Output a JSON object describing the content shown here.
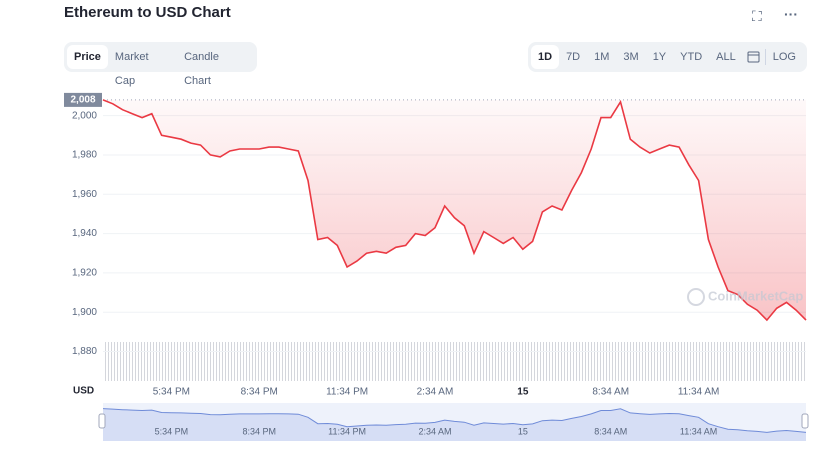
{
  "header": {
    "title": "Ethereum to USD Chart"
  },
  "tabs": [
    "Price",
    "Market Cap",
    "Candle Chart"
  ],
  "ranges": [
    "1D",
    "7D",
    "1M",
    "3M",
    "1Y",
    "YTD",
    "ALL"
  ],
  "log_label": "LOG",
  "chart_data": {
    "type": "line",
    "currency_label": "USD",
    "watermark": "CoinMarketCap",
    "start_price": {
      "value": 2008,
      "label": "2,008"
    },
    "categories": [
      null,
      null,
      null,
      null,
      null,
      null,
      null,
      "5:34 PM",
      null,
      null,
      null,
      null,
      null,
      null,
      null,
      null,
      "8:34 PM",
      null,
      null,
      null,
      null,
      null,
      null,
      null,
      null,
      "11:34 PM",
      null,
      null,
      null,
      null,
      null,
      null,
      null,
      null,
      "2:34 AM",
      null,
      null,
      null,
      null,
      null,
      null,
      null,
      null,
      "15",
      null,
      null,
      null,
      null,
      null,
      null,
      null,
      null,
      "8:34 AM",
      null,
      null,
      null,
      null,
      null,
      null,
      null,
      null,
      "11:34 AM",
      null,
      null,
      null,
      null,
      null,
      null,
      null,
      null,
      null,
      null,
      null
    ],
    "values": [
      2008,
      2006,
      2003,
      2001,
      1999,
      2001,
      1990,
      1989,
      1988,
      1986,
      1985,
      1980,
      1979,
      1982,
      1983,
      1983,
      1983,
      1984,
      1984,
      1983,
      1982,
      1967,
      1937,
      1938,
      1934,
      1923,
      1926,
      1930,
      1931,
      1930,
      1933,
      1934,
      1940,
      1939,
      1943,
      1954,
      1948,
      1944,
      1930,
      1941,
      1938,
      1935,
      1938,
      1932,
      1936,
      1951,
      1954,
      1952,
      1962,
      1971,
      1983,
      1999,
      1999,
      2007,
      1988,
      1984,
      1981,
      1983,
      1985,
      1984,
      1975,
      1967,
      1937,
      1923,
      1911,
      1909,
      1904,
      1901,
      1896,
      1902,
      1905,
      1901,
      1896
    ],
    "color": "#ea3943",
    "ylim": [
      1865,
      2011
    ],
    "yticks": [
      {
        "value": 1880,
        "label": "1,880"
      },
      {
        "value": 1900,
        "label": "1,900"
      },
      {
        "value": 1920,
        "label": "1,920"
      },
      {
        "value": 1940,
        "label": "1,940"
      },
      {
        "value": 1960,
        "label": "1,960"
      },
      {
        "value": 1980,
        "label": "1,980"
      },
      {
        "value": 2000,
        "label": "2,000"
      }
    ],
    "grid": true
  }
}
